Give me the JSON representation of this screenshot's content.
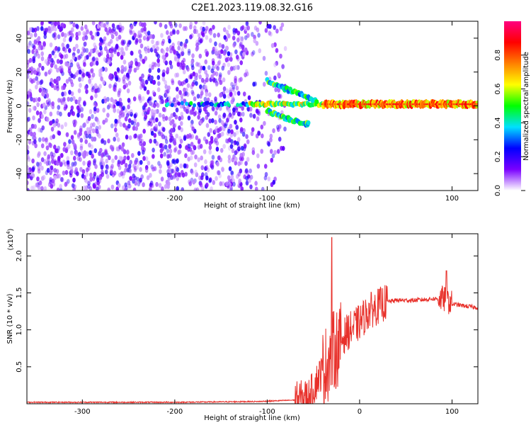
{
  "title": "C2E1.2023.119.08.32.G16",
  "chart_data": [
    {
      "type": "heatmap",
      "xlabel": "Height of straight line (km)",
      "ylabel": "Frequency (Hz)",
      "xlim": [
        -360,
        128
      ],
      "ylim": [
        -50,
        50
      ],
      "x_ticks": [
        -300,
        -200,
        -100,
        0,
        100
      ],
      "y_ticks": [
        -40,
        -20,
        0,
        20,
        40
      ],
      "colorbar": {
        "label": "Normalized spectral amplitude",
        "range": [
          0,
          1
        ],
        "ticks": [
          "0.0",
          "0.2",
          "0.4",
          "0.6",
          "0.8"
        ],
        "colors": [
          "#ffffff",
          "#7a00ff",
          "#0000ff",
          "#00e0ff",
          "#00ff00",
          "#ffff00",
          "#ff8000",
          "#ff0000",
          "#ff0080"
        ]
      },
      "features": [
        {
          "name": "noise",
          "x_range": [
            -360,
            -120
          ],
          "y_range": [
            -50,
            50
          ],
          "level": 0.15
        },
        {
          "name": "signal-band",
          "x_range": [
            -210,
            128
          ],
          "y_center": 1,
          "level": 0.85
        },
        {
          "name": "upper-branch",
          "points": [
            [
              -100,
              15
            ],
            [
              -85,
              11
            ],
            [
              -75,
              9
            ],
            [
              -60,
              6
            ],
            [
              -45,
              3
            ]
          ]
        },
        {
          "name": "lower-branch",
          "points": [
            [
              -100,
              -3
            ],
            [
              -85,
              -6
            ],
            [
              -75,
              -8
            ],
            [
              -60,
              -10
            ],
            [
              -55,
              -11
            ]
          ]
        }
      ]
    },
    {
      "type": "line",
      "xlabel": "Height of straight line (km)",
      "ylabel": "SNR (10 * v/v)",
      "y_multiplier": "(x10",
      "y_multiplier_exp": "4",
      "y_multiplier_close": ")",
      "xlim": [
        -360,
        128
      ],
      "ylim": [
        0,
        2.3
      ],
      "x_ticks": [
        -300,
        -200,
        -100,
        0,
        100
      ],
      "y_ticks": [
        "0.5",
        "1.0",
        "1.5",
        "2.0"
      ],
      "color": "#e8302a",
      "series": [
        {
          "x": [
            -360,
            -200,
            -110,
            -70,
            -55,
            -50,
            -45,
            -40,
            -35,
            -30,
            -25,
            -20,
            -15,
            -10,
            -5,
            0,
            10,
            20,
            30,
            40,
            60,
            80,
            90,
            95,
            100,
            110,
            128
          ],
          "y": [
            0.02,
            0.02,
            0.03,
            0.05,
            0.1,
            0.2,
            0.35,
            0.45,
            0.55,
            0.7,
            0.75,
            0.85,
            0.95,
            1.0,
            1.05,
            1.1,
            1.25,
            1.32,
            1.38,
            1.4,
            1.4,
            1.42,
            1.42,
            1.4,
            1.35,
            1.33,
            1.3
          ]
        }
      ],
      "peaks": [
        {
          "x": -30,
          "y": 2.25
        },
        {
          "x": 94,
          "y": 1.8
        }
      ]
    }
  ]
}
